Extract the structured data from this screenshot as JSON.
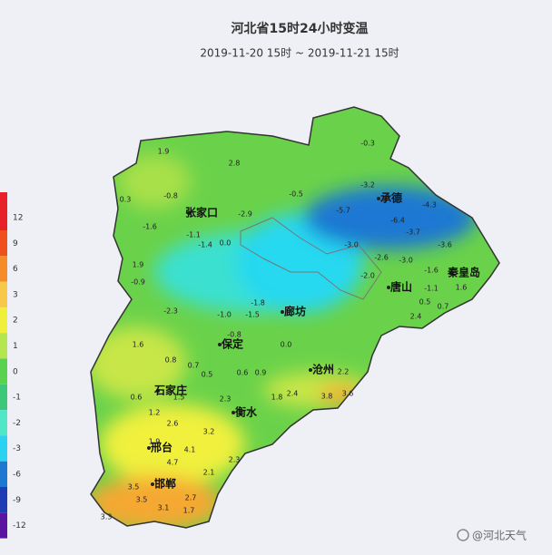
{
  "header": {
    "title": "河北省15时24小时变温",
    "subtitle": "2019-11-20 15时 ~ 2019-11-21 15时"
  },
  "legend": {
    "ticks": [
      "12",
      "9",
      "6",
      "3",
      "2",
      "1",
      "0",
      "-1",
      "-2",
      "-3",
      "-6",
      "-9",
      "-12"
    ],
    "colors": [
      "#e8202a",
      "#f0501e",
      "#f58c28",
      "#f8c84a",
      "#f0f03c",
      "#b4e650",
      "#5ad250",
      "#3cc878",
      "#50e6c8",
      "#28d2f0",
      "#1e78d2",
      "#1e3cb4",
      "#5a14a0"
    ]
  },
  "cities": [
    "张家口",
    "承德",
    "秦皇岛",
    "唐山",
    "廊坊",
    "保定",
    "沧州",
    "石家庄",
    "衡水",
    "邢台",
    "邯郸"
  ],
  "readings": [
    "1.9",
    "2.8",
    "-0.3",
    "0.3",
    "-0.8",
    "-2.9",
    "-0.5",
    "-3.2",
    "-5.7",
    "-6.4",
    "-4.3",
    "-3.7",
    "-3.6",
    "-1.6",
    "-1.1",
    "-1.4",
    "0.0",
    "-3.0",
    "-2.6",
    "-3.0",
    "-1.6",
    "1.9",
    "-0.9",
    "-2.0",
    "-1.1",
    "1.6",
    "0.5",
    "0.7",
    "2.4",
    "-2.3",
    "-1.0",
    "-1.5",
    "-1.8",
    "-0.8",
    "0.0",
    "1.6",
    "0.8",
    "0.7",
    "2.2",
    "0.5",
    "0.6",
    "0.9",
    "0.6",
    "1.5",
    "2.3",
    "1.8",
    "2.4",
    "3.8",
    "3.6",
    "1.2",
    "2.6",
    "1.9",
    "3.2",
    "4.1",
    "2.3",
    "4.7",
    "2.1",
    "3.5",
    "3.3",
    "3.5",
    "3.1",
    "2.7",
    "1.7"
  ],
  "watermark": "@河北天气"
}
